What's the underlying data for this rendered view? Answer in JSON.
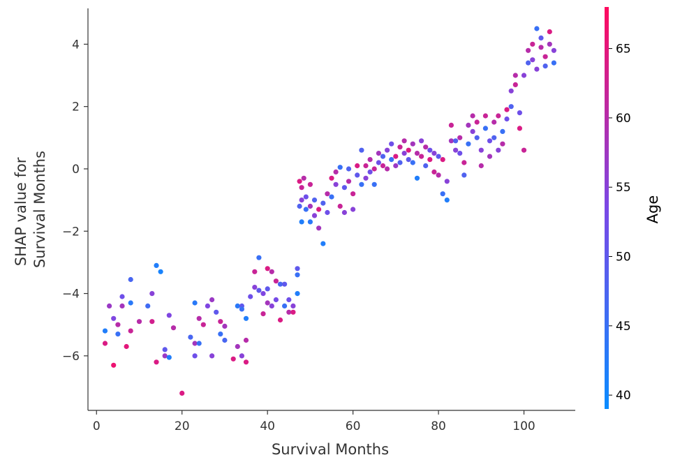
{
  "chart_data": {
    "type": "scatter",
    "xlabel": "Survival Months",
    "ylabel_lines": [
      "SHAP value for",
      "Survival Months"
    ],
    "xlim": [
      -2,
      112
    ],
    "ylim": [
      -7.75,
      5.15
    ],
    "x_ticks": [
      0,
      20,
      40,
      60,
      80,
      100
    ],
    "y_ticks": [
      -6,
      -4,
      -2,
      0,
      2,
      4
    ],
    "x_tick_labels": [
      "0",
      "20",
      "40",
      "60",
      "80",
      "100"
    ],
    "y_tick_labels": [
      "−6",
      "−4",
      "−2",
      "0",
      "2",
      "4"
    ],
    "grid": false,
    "colorbar": {
      "label": "Age",
      "range": [
        39,
        68
      ],
      "ticks": [
        40,
        45,
        50,
        55,
        60,
        65
      ],
      "tick_labels": [
        "40",
        "45",
        "50",
        "55",
        "60",
        "65"
      ],
      "color_low": "#0a8cff",
      "color_mid": "#7a48e6",
      "color_high": "#ff0a5e"
    },
    "points": [
      [
        2,
        -5.2,
        42
      ],
      [
        2,
        -5.6,
        64
      ],
      [
        3,
        -4.4,
        57
      ],
      [
        4,
        -6.3,
        66
      ],
      [
        4,
        -4.8,
        54
      ],
      [
        5,
        -5.3,
        45
      ],
      [
        5,
        -5.0,
        60
      ],
      [
        6,
        -4.1,
        52
      ],
      [
        6,
        -4.4,
        58
      ],
      [
        7,
        -5.7,
        65
      ],
      [
        8,
        -3.55,
        47
      ],
      [
        8,
        -4.3,
        43
      ],
      [
        8,
        -5.2,
        62
      ],
      [
        10,
        -4.9,
        60
      ],
      [
        12,
        -4.4,
        46
      ],
      [
        13,
        -4.0,
        55
      ],
      [
        13,
        -4.9,
        63
      ],
      [
        14,
        -3.1,
        42
      ],
      [
        14,
        -6.2,
        64
      ],
      [
        15,
        -3.3,
        41
      ],
      [
        16,
        -6.0,
        57
      ],
      [
        16,
        -5.8,
        50
      ],
      [
        17,
        -6.05,
        42
      ],
      [
        17,
        -4.7,
        54
      ],
      [
        18,
        -5.1,
        60
      ],
      [
        20,
        -7.2,
        64
      ],
      [
        22,
        -5.4,
        47
      ],
      [
        23,
        -4.3,
        43
      ],
      [
        23,
        -5.6,
        58
      ],
      [
        23,
        -6.0,
        52
      ],
      [
        24,
        -4.8,
        60
      ],
      [
        24,
        -5.6,
        45
      ],
      [
        25,
        -5.0,
        62
      ],
      [
        26,
        -4.4,
        54
      ],
      [
        27,
        -4.2,
        57
      ],
      [
        27,
        -6.0,
        55
      ],
      [
        28,
        -4.6,
        50
      ],
      [
        29,
        -5.3,
        45
      ],
      [
        29,
        -4.9,
        62
      ],
      [
        30,
        -5.05,
        58
      ],
      [
        30,
        -5.5,
        47
      ],
      [
        32,
        -6.1,
        64
      ],
      [
        33,
        -5.7,
        58
      ],
      [
        33,
        -4.4,
        43
      ],
      [
        34,
        -4.4,
        50
      ],
      [
        34,
        -4.5,
        45
      ],
      [
        34,
        -6.0,
        55
      ],
      [
        35,
        -4.8,
        42
      ],
      [
        35,
        -6.2,
        64
      ],
      [
        35,
        -5.5,
        60
      ],
      [
        36,
        -4.1,
        52
      ],
      [
        37,
        -3.3,
        62
      ],
      [
        37,
        -3.8,
        55
      ],
      [
        38,
        -2.85,
        45
      ],
      [
        38,
        -3.9,
        50
      ],
      [
        39,
        -4.0,
        54
      ],
      [
        39,
        -4.65,
        62
      ],
      [
        40,
        -4.3,
        58
      ],
      [
        40,
        -3.2,
        64
      ],
      [
        40,
        -3.85,
        50
      ],
      [
        41,
        -3.3,
        60
      ],
      [
        41,
        -4.4,
        55
      ],
      [
        42,
        -3.6,
        62
      ],
      [
        42,
        -4.2,
        53
      ],
      [
        43,
        -3.7,
        47
      ],
      [
        43,
        -4.85,
        64
      ],
      [
        44,
        -3.7,
        50
      ],
      [
        44,
        -4.4,
        45
      ],
      [
        45,
        -4.6,
        60
      ],
      [
        45,
        -4.2,
        52
      ],
      [
        46,
        -4.6,
        64
      ],
      [
        46,
        -4.4,
        55
      ],
      [
        47,
        -3.2,
        50
      ],
      [
        47,
        -3.4,
        45
      ],
      [
        47,
        -4.0,
        42
      ],
      [
        47.5,
        -1.2,
        48
      ],
      [
        47.5,
        -0.4,
        64
      ],
      [
        48,
        -1.7,
        42
      ],
      [
        48,
        -1.0,
        55
      ],
      [
        48,
        -0.6,
        62
      ],
      [
        48.5,
        -0.3,
        60
      ],
      [
        49,
        -1.3,
        45
      ],
      [
        49,
        -0.9,
        52
      ],
      [
        50,
        -1.7,
        43
      ],
      [
        50,
        -1.2,
        58
      ],
      [
        50,
        -0.5,
        62
      ],
      [
        51,
        -1.0,
        48
      ],
      [
        51,
        -1.5,
        55
      ],
      [
        52,
        -1.9,
        58
      ],
      [
        52,
        -1.3,
        64
      ],
      [
        53,
        -1.1,
        48
      ],
      [
        53,
        -2.4,
        42
      ],
      [
        54,
        -0.8,
        60
      ],
      [
        54,
        -1.4,
        52
      ],
      [
        55,
        -0.3,
        64
      ],
      [
        55,
        -0.9,
        45
      ],
      [
        56,
        -0.5,
        55
      ],
      [
        56,
        -0.1,
        60
      ],
      [
        57,
        -1.2,
        62
      ],
      [
        57,
        0.05,
        45
      ],
      [
        58,
        -0.6,
        50
      ],
      [
        58,
        -1.4,
        55
      ],
      [
        59,
        -0.4,
        60
      ],
      [
        59,
        0.0,
        48
      ],
      [
        60,
        -0.8,
        62
      ],
      [
        60,
        -1.3,
        55
      ],
      [
        61,
        -0.2,
        50
      ],
      [
        61,
        0.1,
        64
      ],
      [
        62,
        -0.5,
        45
      ],
      [
        62,
        0.6,
        48
      ],
      [
        63,
        0.1,
        62
      ],
      [
        63,
        -0.3,
        55
      ],
      [
        64,
        0.3,
        60
      ],
      [
        64,
        -0.1,
        52
      ],
      [
        65,
        0.0,
        62
      ],
      [
        65,
        -0.5,
        45
      ],
      [
        66,
        0.5,
        58
      ],
      [
        66,
        0.2,
        52
      ],
      [
        67,
        0.1,
        62
      ],
      [
        67,
        0.4,
        48
      ],
      [
        68,
        0.6,
        55
      ],
      [
        68,
        0.0,
        60
      ],
      [
        69,
        0.3,
        45
      ],
      [
        69,
        0.8,
        52
      ],
      [
        70,
        0.4,
        64
      ],
      [
        70,
        0.1,
        57
      ],
      [
        71,
        0.7,
        62
      ],
      [
        71,
        0.2,
        48
      ],
      [
        72,
        0.5,
        55
      ],
      [
        72,
        0.9,
        60
      ],
      [
        73,
        0.3,
        50
      ],
      [
        73,
        0.6,
        64
      ],
      [
        74,
        0.8,
        58
      ],
      [
        74,
        0.2,
        45
      ],
      [
        75,
        0.5,
        60
      ],
      [
        75,
        -0.3,
        42
      ],
      [
        76,
        0.9,
        55
      ],
      [
        76,
        0.4,
        62
      ],
      [
        77,
        0.1,
        48
      ],
      [
        77,
        0.7,
        60
      ],
      [
        78,
        0.6,
        52
      ],
      [
        78,
        0.3,
        64
      ],
      [
        79,
        0.5,
        55
      ],
      [
        79,
        -0.1,
        62
      ],
      [
        80,
        -0.2,
        60
      ],
      [
        80,
        0.4,
        50
      ],
      [
        81,
        0.3,
        64
      ],
      [
        81,
        -0.8,
        45
      ],
      [
        82,
        -1.0,
        42
      ],
      [
        82,
        -0.4,
        55
      ],
      [
        83,
        0.9,
        58
      ],
      [
        83,
        1.4,
        62
      ],
      [
        84,
        0.9,
        48
      ],
      [
        84,
        0.6,
        55
      ],
      [
        85,
        1.0,
        60
      ],
      [
        85,
        0.5,
        52
      ],
      [
        86,
        0.2,
        62
      ],
      [
        86,
        -0.2,
        48
      ],
      [
        87,
        0.8,
        45
      ],
      [
        87,
        1.4,
        58
      ],
      [
        88,
        1.2,
        55
      ],
      [
        88,
        1.7,
        60
      ],
      [
        89,
        1.0,
        48
      ],
      [
        89,
        1.5,
        62
      ],
      [
        90,
        0.6,
        55
      ],
      [
        90,
        0.1,
        60
      ],
      [
        91,
        1.3,
        45
      ],
      [
        91,
        1.7,
        62
      ],
      [
        92,
        0.9,
        52
      ],
      [
        92,
        0.4,
        58
      ],
      [
        93,
        1.5,
        60
      ],
      [
        93,
        1.0,
        48
      ],
      [
        94,
        1.7,
        62
      ],
      [
        94,
        0.6,
        55
      ],
      [
        95,
        1.2,
        45
      ],
      [
        95,
        0.8,
        60
      ],
      [
        96,
        1.6,
        52
      ],
      [
        96,
        1.9,
        64
      ],
      [
        97,
        2.5,
        55
      ],
      [
        97,
        2.0,
        48
      ],
      [
        98,
        2.7,
        62
      ],
      [
        98,
        3.0,
        60
      ],
      [
        99,
        1.8,
        52
      ],
      [
        99,
        1.3,
        64
      ],
      [
        100,
        0.6,
        62
      ],
      [
        100,
        3.0,
        55
      ],
      [
        101,
        3.4,
        48
      ],
      [
        101,
        3.8,
        60
      ],
      [
        102,
        3.5,
        55
      ],
      [
        102,
        4.0,
        62
      ],
      [
        103,
        4.5,
        45
      ],
      [
        103,
        3.2,
        55
      ],
      [
        104,
        3.9,
        60
      ],
      [
        104,
        4.2,
        50
      ],
      [
        105,
        3.6,
        62
      ],
      [
        105,
        3.3,
        48
      ],
      [
        106,
        4.0,
        58
      ],
      [
        106,
        4.4,
        64
      ],
      [
        107,
        3.8,
        55
      ],
      [
        107,
        3.4,
        45
      ]
    ]
  }
}
